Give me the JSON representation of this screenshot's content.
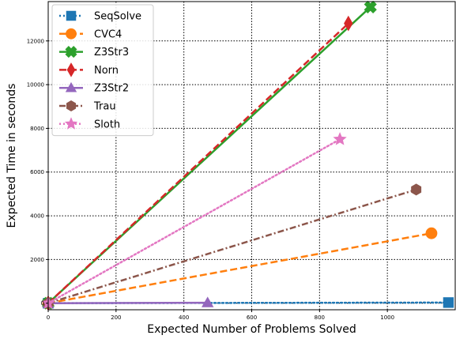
{
  "chart_data": {
    "type": "line",
    "title": "",
    "xlabel": "Expected Number of Problems Solved",
    "ylabel": "Expected Time in seconds",
    "xlim": [
      0,
      1200
    ],
    "ylim": [
      -300,
      13800
    ],
    "xticks": [
      0,
      200,
      400,
      600,
      800,
      1000
    ],
    "yticks": [
      0,
      2000,
      4000,
      6000,
      8000,
      10000,
      12000
    ],
    "grid": true,
    "legend_position": "top-left",
    "series": [
      {
        "name": "SeqSolve",
        "color": "#1f77b4",
        "linestyle": "dotted",
        "marker": "square",
        "x": [
          0,
          1180
        ],
        "y": [
          0,
          30
        ]
      },
      {
        "name": "CVC4",
        "color": "#ff7f0e",
        "linestyle": "dashed",
        "marker": "circle",
        "x": [
          0,
          1130
        ],
        "y": [
          0,
          3200
        ]
      },
      {
        "name": "Z3Str3",
        "color": "#2ca02c",
        "linestyle": "solid",
        "marker": "x",
        "x": [
          0,
          950
        ],
        "y": [
          0,
          13550
        ]
      },
      {
        "name": "Norn",
        "color": "#d62728",
        "linestyle": "dashed",
        "marker": "diamond",
        "x": [
          0,
          885
        ],
        "y": [
          0,
          12800
        ]
      },
      {
        "name": "Z3Str2",
        "color": "#9467bd",
        "linestyle": "solid",
        "marker": "triangle",
        "x": [
          0,
          470
        ],
        "y": [
          0,
          20
        ]
      },
      {
        "name": "Trau",
        "color": "#8c564b",
        "linestyle": "dashdot",
        "marker": "hexagon",
        "x": [
          0,
          1085
        ],
        "y": [
          0,
          5200
        ]
      },
      {
        "name": "Sloth",
        "color": "#e377c2",
        "linestyle": "dotted",
        "marker": "star",
        "x": [
          0,
          860
        ],
        "y": [
          0,
          7500
        ]
      }
    ]
  }
}
